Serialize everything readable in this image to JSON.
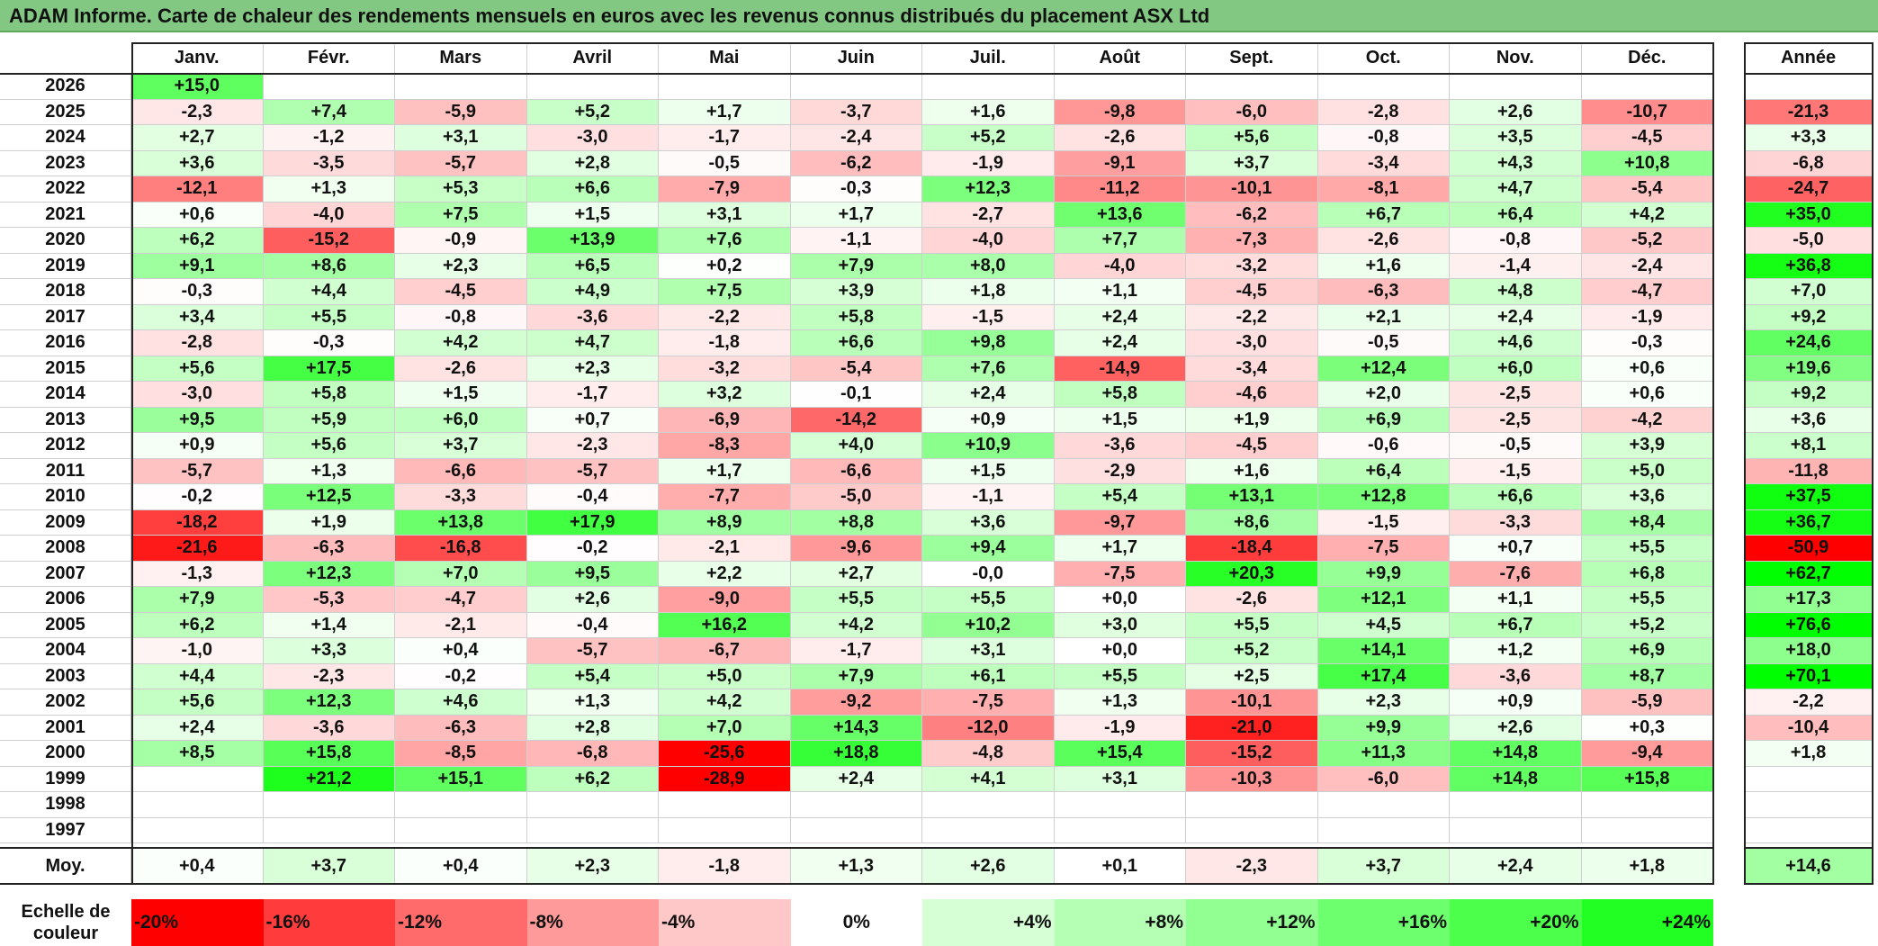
{
  "title": "ADAM Informe. Carte de chaleur des rendements mensuels en euros avec les revenus connus distribués du placement ASX Ltd",
  "chart_data": {
    "type": "heatmap",
    "title": "ADAM Informe. Carte de chaleur des rendements mensuels en euros avec les revenus connus distribués du placement ASX Ltd",
    "columns": [
      "Janv.",
      "Févr.",
      "Mars",
      "Avril",
      "Mai",
      "Juin",
      "Juil.",
      "Août",
      "Sept.",
      "Oct.",
      "Nov.",
      "Déc."
    ],
    "year_column_label": "Année",
    "rows": [
      {
        "year": "2026",
        "months": [
          "+15,0",
          "",
          "",
          "",
          "",
          "",
          "",
          "",
          "",
          "",
          "",
          ""
        ],
        "annual": ""
      },
      {
        "year": "2025",
        "months": [
          "-2,3",
          "+7,4",
          "-5,9",
          "+5,2",
          "+1,7",
          "-3,7",
          "+1,6",
          "-9,8",
          "-6,0",
          "-2,8",
          "+2,6",
          "-10,7"
        ],
        "annual": "-21,3"
      },
      {
        "year": "2024",
        "months": [
          "+2,7",
          "-1,2",
          "+3,1",
          "-3,0",
          "-1,7",
          "-2,4",
          "+5,2",
          "-2,6",
          "+5,6",
          "-0,8",
          "+3,5",
          "-4,5"
        ],
        "annual": "+3,3"
      },
      {
        "year": "2023",
        "months": [
          "+3,6",
          "-3,5",
          "-5,7",
          "+2,8",
          "-0,5",
          "-6,2",
          "-1,9",
          "-9,1",
          "+3,7",
          "-3,4",
          "+4,3",
          "+10,8"
        ],
        "annual": "-6,8"
      },
      {
        "year": "2022",
        "months": [
          "-12,1",
          "+1,3",
          "+5,3",
          "+6,6",
          "-7,9",
          "-0,3",
          "+12,3",
          "-11,2",
          "-10,1",
          "-8,1",
          "+4,7",
          "-5,4"
        ],
        "annual": "-24,7"
      },
      {
        "year": "2021",
        "months": [
          "+0,6",
          "-4,0",
          "+7,5",
          "+1,5",
          "+3,1",
          "+1,7",
          "-2,7",
          "+13,6",
          "-6,2",
          "+6,7",
          "+6,4",
          "+4,2"
        ],
        "annual": "+35,0"
      },
      {
        "year": "2020",
        "months": [
          "+6,2",
          "-15,2",
          "-0,9",
          "+13,9",
          "+7,6",
          "-1,1",
          "-4,0",
          "+7,7",
          "-7,3",
          "-2,6",
          "-0,8",
          "-5,2"
        ],
        "annual": "-5,0"
      },
      {
        "year": "2019",
        "months": [
          "+9,1",
          "+8,6",
          "+2,3",
          "+6,5",
          "+0,2",
          "+7,9",
          "+8,0",
          "-4,0",
          "-3,2",
          "+1,6",
          "-1,4",
          "-2,4"
        ],
        "annual": "+36,8"
      },
      {
        "year": "2018",
        "months": [
          "-0,3",
          "+4,4",
          "-4,5",
          "+4,9",
          "+7,5",
          "+3,9",
          "+1,8",
          "+1,1",
          "-4,5",
          "-6,3",
          "+4,8",
          "-4,7"
        ],
        "annual": "+7,0"
      },
      {
        "year": "2017",
        "months": [
          "+3,4",
          "+5,5",
          "-0,8",
          "-3,6",
          "-2,2",
          "+5,8",
          "-1,5",
          "+2,4",
          "-2,2",
          "+2,1",
          "+2,4",
          "-1,9"
        ],
        "annual": "+9,2"
      },
      {
        "year": "2016",
        "months": [
          "-2,8",
          "-0,3",
          "+4,2",
          "+4,7",
          "-1,8",
          "+6,6",
          "+9,8",
          "+2,4",
          "-3,0",
          "-0,5",
          "+4,6",
          "-0,3"
        ],
        "annual": "+24,6"
      },
      {
        "year": "2015",
        "months": [
          "+5,6",
          "+17,5",
          "-2,6",
          "+2,3",
          "-3,2",
          "-5,4",
          "+7,6",
          "-14,9",
          "-3,4",
          "+12,4",
          "+6,0",
          "+0,6"
        ],
        "annual": "+19,6"
      },
      {
        "year": "2014",
        "months": [
          "-3,0",
          "+5,8",
          "+1,5",
          "-1,7",
          "+3,2",
          "-0,1",
          "+2,4",
          "+5,8",
          "-4,6",
          "+2,0",
          "-2,5",
          "+0,6"
        ],
        "annual": "+9,2"
      },
      {
        "year": "2013",
        "months": [
          "+9,5",
          "+5,9",
          "+6,0",
          "+0,7",
          "-6,9",
          "-14,2",
          "+0,9",
          "+1,5",
          "+1,9",
          "+6,9",
          "-2,5",
          "-4,2"
        ],
        "annual": "+3,6"
      },
      {
        "year": "2012",
        "months": [
          "+0,9",
          "+5,6",
          "+3,7",
          "-2,3",
          "-8,3",
          "+4,0",
          "+10,9",
          "-3,6",
          "-4,5",
          "-0,6",
          "-0,5",
          "+3,9"
        ],
        "annual": "+8,1"
      },
      {
        "year": "2011",
        "months": [
          "-5,7",
          "+1,3",
          "-6,6",
          "-5,7",
          "+1,7",
          "-6,6",
          "+1,5",
          "-2,9",
          "+1,6",
          "+6,4",
          "-1,5",
          "+5,0"
        ],
        "annual": "-11,8"
      },
      {
        "year": "2010",
        "months": [
          "-0,2",
          "+12,5",
          "-3,3",
          "-0,4",
          "-7,7",
          "-5,0",
          "-1,1",
          "+5,4",
          "+13,1",
          "+12,8",
          "+6,6",
          "+3,6"
        ],
        "annual": "+37,5"
      },
      {
        "year": "2009",
        "months": [
          "-18,2",
          "+1,9",
          "+13,8",
          "+17,9",
          "+8,9",
          "+8,8",
          "+3,6",
          "-9,7",
          "+8,6",
          "-1,5",
          "-3,3",
          "+8,4"
        ],
        "annual": "+36,7"
      },
      {
        "year": "2008",
        "months": [
          "-21,6",
          "-6,3",
          "-16,8",
          "-0,2",
          "-2,1",
          "-9,6",
          "+9,4",
          "+1,7",
          "-18,4",
          "-7,5",
          "+0,7",
          "+5,5"
        ],
        "annual": "-50,9"
      },
      {
        "year": "2007",
        "months": [
          "-1,3",
          "+12,3",
          "+7,0",
          "+9,5",
          "+2,2",
          "+2,7",
          "-0,0",
          "-7,5",
          "+20,3",
          "+9,9",
          "-7,6",
          "+6,8"
        ],
        "annual": "+62,7"
      },
      {
        "year": "2006",
        "months": [
          "+7,9",
          "-5,3",
          "-4,7",
          "+2,6",
          "-9,0",
          "+5,5",
          "+5,5",
          "+0,0",
          "-2,6",
          "+12,1",
          "+1,1",
          "+5,5"
        ],
        "annual": "+17,3"
      },
      {
        "year": "2005",
        "months": [
          "+6,2",
          "+1,4",
          "-2,1",
          "-0,4",
          "+16,2",
          "+4,2",
          "+10,2",
          "+3,0",
          "+5,5",
          "+4,5",
          "+6,7",
          "+5,2"
        ],
        "annual": "+76,6"
      },
      {
        "year": "2004",
        "months": [
          "-1,0",
          "+3,3",
          "+0,4",
          "-5,7",
          "-6,7",
          "-1,7",
          "+3,1",
          "+0,0",
          "+5,2",
          "+14,1",
          "+1,2",
          "+6,9"
        ],
        "annual": "+18,0"
      },
      {
        "year": "2003",
        "months": [
          "+4,4",
          "-2,3",
          "-0,2",
          "+5,4",
          "+5,0",
          "+7,9",
          "+6,1",
          "+5,5",
          "+2,5",
          "+17,4",
          "-3,6",
          "+8,7"
        ],
        "annual": "+70,1"
      },
      {
        "year": "2002",
        "months": [
          "+5,6",
          "+12,3",
          "+4,6",
          "+1,3",
          "+4,2",
          "-9,2",
          "-7,5",
          "+1,3",
          "-10,1",
          "+2,3",
          "+0,9",
          "-5,9"
        ],
        "annual": "-2,2"
      },
      {
        "year": "2001",
        "months": [
          "+2,4",
          "-3,6",
          "-6,3",
          "+2,8",
          "+7,0",
          "+14,3",
          "-12,0",
          "-1,9",
          "-21,0",
          "+9,9",
          "+2,6",
          "+0,3"
        ],
        "annual": "-10,4"
      },
      {
        "year": "2000",
        "months": [
          "+8,5",
          "+15,8",
          "-8,5",
          "-6,8",
          "-25,6",
          "+18,8",
          "-4,8",
          "+15,4",
          "-15,2",
          "+11,3",
          "+14,8",
          "-9,4"
        ],
        "annual": "+1,8"
      },
      {
        "year": "1999",
        "months": [
          "",
          "+21,2",
          "+15,1",
          "+6,2",
          "-28,9",
          "+2,4",
          "+4,1",
          "+3,1",
          "-10,3",
          "-6,0",
          "+14,8",
          "+15,8"
        ],
        "annual": ""
      },
      {
        "year": "1998",
        "months": [
          "",
          "",
          "",
          "",
          "",
          "",
          "",
          "",
          "",
          "",
          "",
          ""
        ],
        "annual": ""
      },
      {
        "year": "1997",
        "months": [
          "",
          "",
          "",
          "",
          "",
          "",
          "",
          "",
          "",
          "",
          "",
          ""
        ],
        "annual": ""
      }
    ],
    "average": {
      "label": "Moy.",
      "months": [
        "+0,4",
        "+3,7",
        "+0,4",
        "+2,3",
        "-1,8",
        "+1,3",
        "+2,6",
        "+0,1",
        "-2,3",
        "+3,7",
        "+2,4",
        "+1,8"
      ],
      "annual": "+14,6"
    },
    "scale": {
      "label_line1": "Echelle de",
      "label_line2": "couleur",
      "steps": [
        "-20%",
        "-16%",
        "-12%",
        "-8%",
        "-4%",
        "0%",
        "+4%",
        "+8%",
        "+12%",
        "+16%",
        "+20%",
        "+24%"
      ],
      "colors": [
        "#ff0000",
        "#ff3b3b",
        "#ff6a6a",
        "#ff9a9a",
        "#ffc8c8",
        "#ffffff",
        "#d6ffd6",
        "#b4ffb4",
        "#91ff91",
        "#6eff6e",
        "#4bff4b",
        "#22ff22"
      ]
    },
    "colors": {
      "negative": "#ff0000",
      "neutral": "#ffffff",
      "positive": "#00ff00",
      "title_bar": "#82c882"
    }
  }
}
